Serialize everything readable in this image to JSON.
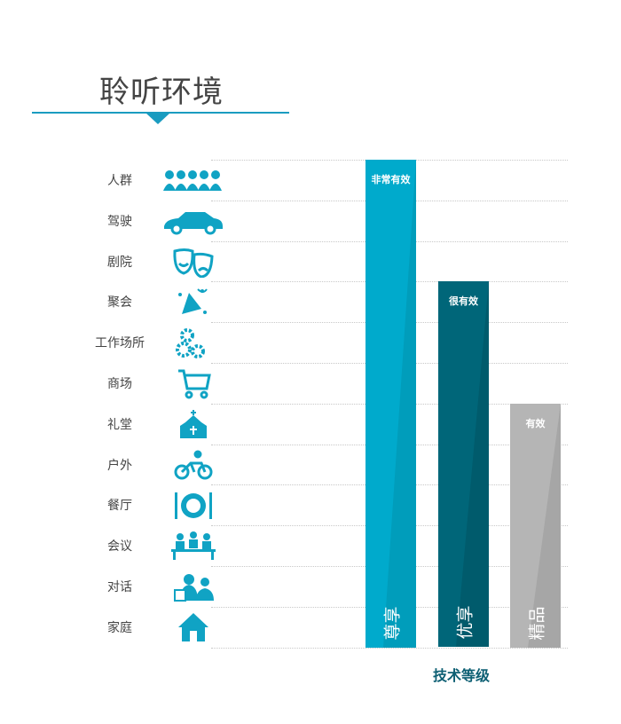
{
  "title": "聆听环境",
  "colors": {
    "accent": "#1a9cc0",
    "icon": "#10a3c4",
    "tier1": "#00aacc",
    "tier2": "#006679",
    "tier3": "#b5b5b5",
    "xlabel": "#0d5f73"
  },
  "chart_data": {
    "type": "bar",
    "title": "聆听环境",
    "xlabel": "技术等级",
    "ylabel": "",
    "categories": [
      "人群",
      "驾驶",
      "剧院",
      "聚会",
      "工作场所",
      "商场",
      "礼堂",
      "户外",
      "餐厅",
      "会议",
      "对话",
      "家庭"
    ],
    "icons": [
      "crowd-icon",
      "car-icon",
      "theater-masks-icon",
      "party-icon",
      "gears-icon",
      "shopping-cart-icon",
      "church-icon",
      "cyclist-icon",
      "plate-cutlery-icon",
      "meeting-icon",
      "conversation-icon",
      "house-icon"
    ],
    "series": [
      {
        "name": "尊享",
        "label": "非常有效",
        "covers_from": "人群",
        "environments_covered": 12
      },
      {
        "name": "优享",
        "label": "很有效",
        "covers_from": "聚会",
        "environments_covered": 9
      },
      {
        "name": "精品",
        "label": "有效",
        "covers_from": "礼堂",
        "environments_covered": 6
      }
    ],
    "grid": true
  }
}
